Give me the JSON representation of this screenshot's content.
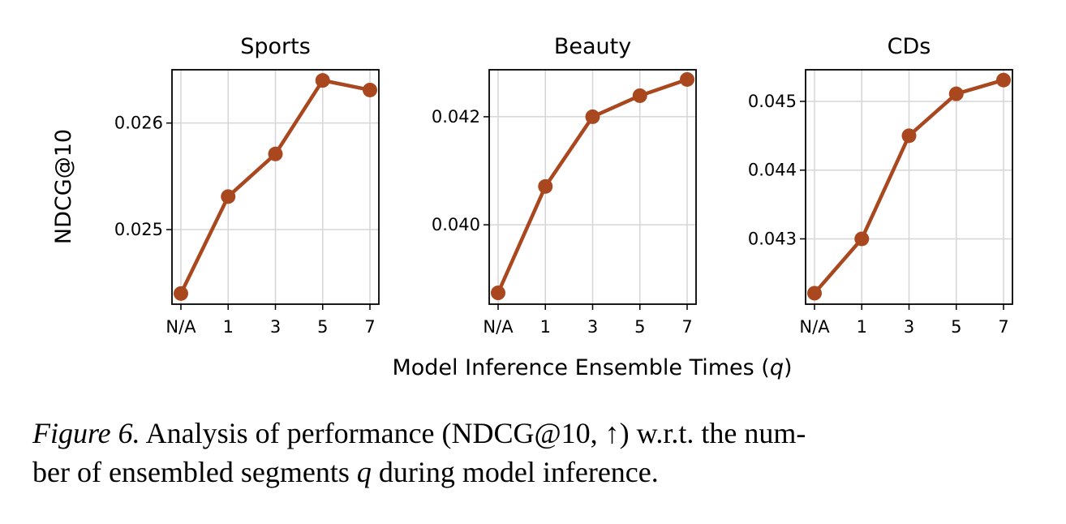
{
  "chart_data": {
    "type": "line",
    "shared_xlabel": "Model Inference Ensemble Times (",
    "shared_xlabel_var": "q",
    "shared_xlabel_end": ")",
    "ylabel": "NDCG@10",
    "categories": [
      "N/A",
      "1",
      "3",
      "5",
      "7"
    ],
    "color": "#a9471f",
    "grid": true,
    "panels": [
      {
        "title": "Sports",
        "values": [
          0.0244,
          0.02531,
          0.02571,
          0.0264,
          0.02631
        ],
        "ylim": [
          0.0243,
          0.0265
        ],
        "yticks": [
          0.025,
          0.026
        ],
        "ytick_labels": [
          "0.025",
          "0.026"
        ]
      },
      {
        "title": "Beauty",
        "values": [
          0.03874,
          0.04071,
          0.042,
          0.04239,
          0.04269
        ],
        "ylim": [
          0.03853,
          0.04287
        ],
        "yticks": [
          0.04,
          0.042
        ],
        "ytick_labels": [
          "0.040",
          "0.042"
        ]
      },
      {
        "title": "CDs",
        "values": [
          0.04221,
          0.043,
          0.0445,
          0.04511,
          0.04531
        ],
        "ylim": [
          0.04205,
          0.04546
        ],
        "yticks": [
          0.043,
          0.044,
          0.045
        ],
        "ytick_labels": [
          "0.043",
          "0.044",
          "0.045"
        ]
      }
    ]
  },
  "caption": {
    "label": "Figure 6.",
    "text1": " Analysis of performance (NDCG@10, ↑) w.r.t. the num-",
    "text2": "ber of ensembled segments ",
    "var": "q",
    "text3": " during model inference."
  }
}
